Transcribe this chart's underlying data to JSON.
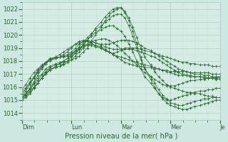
{
  "background_color": "#cce8e0",
  "plot_bg_color": "#d4ece4",
  "grid_color_major": "#a8c8b8",
  "grid_color_minor": "#b8d8c8",
  "line_color": "#2a6830",
  "ylim": [
    1013.5,
    1022.5
  ],
  "yticks": [
    1014,
    1015,
    1016,
    1017,
    1018,
    1019,
    1020,
    1021,
    1022
  ],
  "xlabel": "Pression niveau de la mer( hPa )",
  "xlabel_fontsize": 7,
  "tick_fontsize": 6,
  "day_labels": [
    "Dim",
    "Lun",
    "Mar",
    "Mer",
    "Je"
  ],
  "day_positions": [
    0.0,
    0.25,
    0.5,
    0.75,
    1.0
  ],
  "series": [
    {
      "x": [
        0.0,
        0.02,
        0.04,
        0.06,
        0.08,
        0.1,
        0.12,
        0.14,
        0.17,
        0.19,
        0.21,
        0.23,
        0.25,
        0.27,
        0.29,
        0.31,
        0.33,
        0.35,
        0.37,
        0.4,
        0.42,
        0.44,
        0.46,
        0.48,
        0.5,
        0.52,
        0.54,
        0.56,
        0.58,
        0.6,
        0.62,
        0.65,
        0.67,
        0.69,
        0.71,
        0.73,
        0.75,
        0.77,
        0.79,
        0.81,
        0.83,
        0.85,
        0.87,
        0.9,
        0.92,
        0.94,
        0.96,
        0.98,
        1.0
      ],
      "y": [
        1015.2,
        1015.4,
        1015.7,
        1016.0,
        1016.3,
        1016.7,
        1017.0,
        1017.3,
        1017.6,
        1017.8,
        1017.9,
        1018.0,
        1018.1,
        1018.2,
        1018.4,
        1018.7,
        1019.0,
        1019.5,
        1020.0,
        1020.6,
        1021.1,
        1021.5,
        1021.8,
        1022.0,
        1022.1,
        1021.8,
        1021.3,
        1020.6,
        1019.8,
        1019.0,
        1018.3,
        1017.7,
        1017.2,
        1016.8,
        1016.5,
        1016.2,
        1016.0,
        1015.9,
        1015.8,
        1015.7,
        1015.6,
        1015.6,
        1015.5,
        1015.5,
        1015.4,
        1015.3,
        1015.3,
        1015.2,
        1015.2
      ]
    },
    {
      "x": [
        0.0,
        0.02,
        0.04,
        0.06,
        0.08,
        0.1,
        0.12,
        0.14,
        0.17,
        0.19,
        0.21,
        0.23,
        0.25,
        0.27,
        0.29,
        0.31,
        0.33,
        0.35,
        0.37,
        0.4,
        0.42,
        0.44,
        0.46,
        0.48,
        0.5,
        0.52,
        0.54,
        0.56,
        0.58,
        0.6,
        0.62,
        0.65,
        0.67,
        0.69,
        0.71,
        0.73,
        0.75,
        0.77,
        0.79,
        0.81,
        0.83,
        0.85,
        0.87,
        0.9,
        0.92,
        0.94,
        0.96,
        0.98,
        1.0
      ],
      "y": [
        1015.2,
        1015.5,
        1015.8,
        1016.2,
        1016.5,
        1016.9,
        1017.2,
        1017.5,
        1017.7,
        1017.8,
        1018.0,
        1018.2,
        1018.4,
        1018.6,
        1018.9,
        1019.2,
        1019.6,
        1020.0,
        1020.5,
        1021.0,
        1021.4,
        1021.7,
        1022.0,
        1022.1,
        1022.1,
        1021.7,
        1021.1,
        1020.3,
        1019.3,
        1018.3,
        1017.4,
        1016.6,
        1016.0,
        1015.5,
        1015.1,
        1014.8,
        1014.6,
        1014.5,
        1014.4,
        1014.3,
        1014.3,
        1014.4,
        1014.5,
        1014.6,
        1014.7,
        1014.8,
        1014.9,
        1015.0,
        1015.0
      ]
    },
    {
      "x": [
        0.0,
        0.02,
        0.04,
        0.06,
        0.08,
        0.1,
        0.12,
        0.14,
        0.17,
        0.19,
        0.21,
        0.23,
        0.25,
        0.27,
        0.29,
        0.31,
        0.33,
        0.35,
        0.37,
        0.4,
        0.42,
        0.44,
        0.46,
        0.48,
        0.5,
        0.52,
        0.54,
        0.56,
        0.58,
        0.6,
        0.62,
        0.65,
        0.67,
        0.69,
        0.71,
        0.73,
        0.75,
        0.77,
        0.79,
        0.81,
        0.83,
        0.85,
        0.87,
        0.9,
        0.92,
        0.94,
        0.96,
        0.98,
        1.0
      ],
      "y": [
        1015.2,
        1015.5,
        1015.9,
        1016.3,
        1016.7,
        1017.0,
        1017.4,
        1017.6,
        1017.8,
        1017.9,
        1018.0,
        1018.2,
        1018.5,
        1018.8,
        1019.1,
        1019.4,
        1019.8,
        1020.1,
        1020.4,
        1020.7,
        1021.0,
        1021.2,
        1021.5,
        1021.6,
        1021.6,
        1021.3,
        1020.7,
        1019.9,
        1019.0,
        1018.1,
        1017.4,
        1016.8,
        1016.3,
        1015.8,
        1015.4,
        1015.1,
        1014.8,
        1014.7,
        1014.6,
        1014.6,
        1014.7,
        1014.8,
        1014.9,
        1015.0,
        1015.1,
        1015.1,
        1015.2,
        1015.2,
        1015.2
      ]
    },
    {
      "x": [
        0.0,
        0.02,
        0.04,
        0.06,
        0.08,
        0.1,
        0.12,
        0.14,
        0.17,
        0.19,
        0.21,
        0.23,
        0.25,
        0.27,
        0.29,
        0.31,
        0.33,
        0.35,
        0.37,
        0.4,
        0.42,
        0.44,
        0.46,
        0.48,
        0.5,
        0.52,
        0.54,
        0.56,
        0.58,
        0.6,
        0.62,
        0.65,
        0.67,
        0.69,
        0.71,
        0.73,
        0.75,
        0.77,
        0.79,
        0.81,
        0.83,
        0.85,
        0.87,
        0.9,
        0.92,
        0.94,
        0.96,
        0.98,
        1.0
      ],
      "y": [
        1015.1,
        1015.3,
        1015.6,
        1015.9,
        1016.3,
        1016.7,
        1017.0,
        1017.3,
        1017.5,
        1017.6,
        1017.8,
        1018.0,
        1018.3,
        1018.6,
        1018.9,
        1019.3,
        1019.6,
        1019.9,
        1020.2,
        1020.4,
        1020.6,
        1020.7,
        1020.7,
        1020.5,
        1020.3,
        1019.9,
        1019.3,
        1018.7,
        1018.0,
        1017.4,
        1016.8,
        1016.3,
        1015.9,
        1015.5,
        1015.2,
        1015.0,
        1015.0,
        1015.1,
        1015.2,
        1015.3,
        1015.4,
        1015.5,
        1015.6,
        1015.7,
        1015.7,
        1015.8,
        1015.8,
        1015.9,
        1015.9
      ]
    },
    {
      "x": [
        0.0,
        0.02,
        0.04,
        0.06,
        0.08,
        0.1,
        0.12,
        0.14,
        0.17,
        0.19,
        0.21,
        0.23,
        0.25,
        0.27,
        0.29,
        0.31,
        0.33,
        0.35,
        0.37,
        0.4,
        0.42,
        0.44,
        0.46,
        0.48,
        0.5,
        0.52,
        0.54,
        0.56,
        0.58,
        0.6,
        0.62,
        0.65,
        0.67,
        0.69,
        0.71,
        0.73,
        0.75,
        0.77,
        0.79,
        0.81,
        0.83,
        0.85,
        0.87,
        0.9,
        0.92,
        0.94,
        0.96,
        0.98,
        1.0
      ],
      "y": [
        1015.0,
        1015.2,
        1015.5,
        1015.9,
        1016.3,
        1016.7,
        1017.1,
        1017.4,
        1017.5,
        1017.6,
        1017.7,
        1017.9,
        1018.1,
        1018.4,
        1018.7,
        1019.0,
        1019.3,
        1019.5,
        1019.6,
        1019.7,
        1019.7,
        1019.6,
        1019.4,
        1019.2,
        1018.9,
        1018.6,
        1018.3,
        1018.0,
        1017.7,
        1017.4,
        1017.1,
        1016.8,
        1016.6,
        1016.4,
        1016.2,
        1016.1,
        1016.1,
        1016.1,
        1016.2,
        1016.3,
        1016.4,
        1016.5,
        1016.5,
        1016.6,
        1016.6,
        1016.7,
        1016.7,
        1016.7,
        1016.8
      ]
    },
    {
      "x": [
        0.0,
        0.02,
        0.04,
        0.06,
        0.08,
        0.1,
        0.12,
        0.14,
        0.17,
        0.19,
        0.21,
        0.23,
        0.25,
        0.27,
        0.29,
        0.31,
        0.33,
        0.35,
        0.37,
        0.4,
        0.42,
        0.44,
        0.46,
        0.48,
        0.5,
        0.52,
        0.54,
        0.56,
        0.58,
        0.6,
        0.62,
        0.65,
        0.67,
        0.69,
        0.71,
        0.73,
        0.75,
        0.77,
        0.79,
        0.81,
        0.83,
        0.85,
        0.87,
        0.9,
        0.92,
        0.94,
        0.96,
        0.98,
        1.0
      ],
      "y": [
        1015.2,
        1015.5,
        1015.9,
        1016.4,
        1016.9,
        1017.4,
        1017.8,
        1018.1,
        1018.3,
        1018.3,
        1018.3,
        1018.4,
        1018.6,
        1018.8,
        1019.0,
        1019.2,
        1019.3,
        1019.3,
        1019.2,
        1019.1,
        1018.9,
        1018.7,
        1018.5,
        1018.3,
        1018.1,
        1017.9,
        1017.8,
        1017.7,
        1017.6,
        1017.6,
        1017.5,
        1017.5,
        1017.4,
        1017.4,
        1017.3,
        1017.3,
        1017.2,
        1017.2,
        1017.2,
        1017.2,
        1017.2,
        1017.1,
        1017.1,
        1017.1,
        1017.1,
        1017.1,
        1017.0,
        1017.0,
        1017.0
      ]
    },
    {
      "x": [
        0.0,
        0.02,
        0.04,
        0.06,
        0.08,
        0.1,
        0.12,
        0.14,
        0.17,
        0.19,
        0.21,
        0.23,
        0.25,
        0.27,
        0.29,
        0.31,
        0.33,
        0.35,
        0.37,
        0.4,
        0.42,
        0.44,
        0.46,
        0.48,
        0.5,
        0.52,
        0.54,
        0.56,
        0.58,
        0.6,
        0.62,
        0.65,
        0.67,
        0.69,
        0.71,
        0.73,
        0.75,
        0.77,
        0.79,
        0.81,
        0.83,
        0.85,
        0.87,
        0.9,
        0.92,
        0.94,
        0.96,
        0.98,
        1.0
      ],
      "y": [
        1015.3,
        1015.7,
        1016.2,
        1016.7,
        1017.2,
        1017.6,
        1017.9,
        1018.2,
        1018.3,
        1018.3,
        1018.3,
        1018.4,
        1018.5,
        1018.7,
        1018.9,
        1019.1,
        1019.2,
        1019.2,
        1019.1,
        1019.0,
        1018.8,
        1018.7,
        1018.5,
        1018.4,
        1018.3,
        1018.2,
        1018.1,
        1018.0,
        1017.9,
        1017.8,
        1017.7,
        1017.6,
        1017.5,
        1017.4,
        1017.3,
        1017.2,
        1017.1,
        1017.0,
        1016.9,
        1016.9,
        1016.9,
        1016.8,
        1016.8,
        1016.8,
        1016.8,
        1016.7,
        1016.7,
        1016.7,
        1016.7
      ]
    },
    {
      "x": [
        0.0,
        0.02,
        0.04,
        0.06,
        0.08,
        0.1,
        0.12,
        0.14,
        0.17,
        0.19,
        0.21,
        0.23,
        0.25,
        0.27,
        0.29,
        0.31,
        0.33,
        0.35,
        0.37,
        0.4,
        0.42,
        0.44,
        0.46,
        0.48,
        0.5,
        0.52,
        0.54,
        0.56,
        0.58,
        0.6,
        0.62,
        0.65,
        0.67,
        0.69,
        0.71,
        0.73,
        0.75,
        0.77,
        0.79,
        0.81,
        0.83,
        0.85,
        0.87,
        0.9,
        0.92,
        0.94,
        0.96,
        0.98,
        1.0
      ],
      "y": [
        1015.5,
        1015.9,
        1016.4,
        1016.8,
        1017.3,
        1017.6,
        1017.9,
        1018.1,
        1018.2,
        1018.3,
        1018.4,
        1018.5,
        1018.7,
        1019.0,
        1019.3,
        1019.5,
        1019.6,
        1019.5,
        1019.4,
        1019.2,
        1019.1,
        1019.0,
        1018.9,
        1018.9,
        1018.9,
        1019.0,
        1019.0,
        1019.0,
        1019.0,
        1018.9,
        1018.8,
        1018.7,
        1018.6,
        1018.5,
        1018.4,
        1018.3,
        1018.2,
        1018.1,
        1018.0,
        1017.9,
        1017.9,
        1017.8,
        1017.8,
        1017.7,
        1017.7,
        1017.7,
        1017.6,
        1017.6,
        1017.6
      ]
    },
    {
      "x": [
        0.0,
        0.02,
        0.04,
        0.06,
        0.08,
        0.1,
        0.12,
        0.14,
        0.17,
        0.19,
        0.21,
        0.23,
        0.25,
        0.27,
        0.29,
        0.31,
        0.33,
        0.35,
        0.37,
        0.4,
        0.42,
        0.44,
        0.46,
        0.48,
        0.5,
        0.52,
        0.54,
        0.56,
        0.58,
        0.6,
        0.62,
        0.65,
        0.67,
        0.69,
        0.71,
        0.73,
        0.75,
        0.77,
        0.79,
        0.81,
        0.83,
        0.85,
        0.87,
        0.9,
        0.92,
        0.94,
        0.96,
        0.98,
        1.0
      ],
      "y": [
        1015.8,
        1016.2,
        1016.7,
        1017.1,
        1017.4,
        1017.7,
        1017.9,
        1018.0,
        1018.2,
        1018.3,
        1018.5,
        1018.7,
        1019.0,
        1019.3,
        1019.5,
        1019.6,
        1019.6,
        1019.5,
        1019.4,
        1019.3,
        1019.3,
        1019.3,
        1019.4,
        1019.5,
        1019.6,
        1019.6,
        1019.6,
        1019.5,
        1019.4,
        1019.2,
        1019.0,
        1018.8,
        1018.6,
        1018.4,
        1018.2,
        1018.0,
        1017.8,
        1017.6,
        1017.4,
        1017.3,
        1017.2,
        1017.1,
        1017.0,
        1017.0,
        1016.9,
        1016.9,
        1016.8,
        1016.8,
        1016.8
      ]
    },
    {
      "x": [
        0.0,
        0.02,
        0.04,
        0.06,
        0.08,
        0.1,
        0.12,
        0.14,
        0.17,
        0.19,
        0.21,
        0.23,
        0.25,
        0.27,
        0.29,
        0.31,
        0.33,
        0.35,
        0.37,
        0.4,
        0.42,
        0.44,
        0.46,
        0.48,
        0.5,
        0.52,
        0.54,
        0.56,
        0.58,
        0.6,
        0.62,
        0.65,
        0.67,
        0.69,
        0.71,
        0.73,
        0.75,
        0.77,
        0.79,
        0.81,
        0.83,
        0.85,
        0.87,
        0.9,
        0.92,
        0.94,
        0.96,
        0.98,
        1.0
      ],
      "y": [
        1015.5,
        1015.9,
        1016.3,
        1016.7,
        1017.1,
        1017.5,
        1017.8,
        1018.1,
        1018.3,
        1018.5,
        1018.7,
        1018.9,
        1019.1,
        1019.3,
        1019.4,
        1019.5,
        1019.5,
        1019.4,
        1019.2,
        1019.0,
        1018.8,
        1018.7,
        1018.6,
        1018.7,
        1018.8,
        1018.9,
        1018.9,
        1018.9,
        1018.8,
        1018.7,
        1018.6,
        1018.4,
        1018.3,
        1018.1,
        1017.9,
        1017.7,
        1017.5,
        1017.3,
        1017.1,
        1017.0,
        1016.9,
        1016.9,
        1016.8,
        1016.8,
        1016.7,
        1016.7,
        1016.7,
        1016.6,
        1016.6
      ]
    }
  ]
}
